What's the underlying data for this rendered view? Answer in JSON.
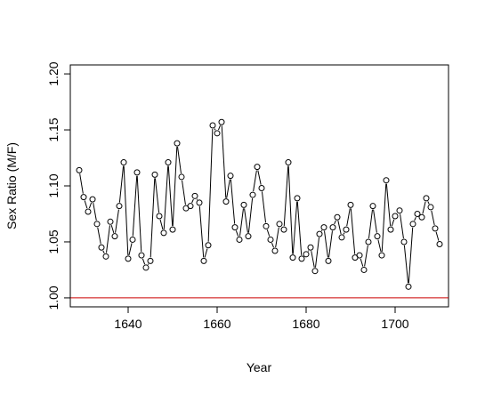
{
  "chart_data": {
    "type": "line",
    "xlabel": "Year",
    "ylabel": "Sex Ratio (M/F)",
    "xlim": [
      1627,
      1712
    ],
    "ylim": [
      0.992,
      1.208
    ],
    "xticks": [
      1640,
      1660,
      1680,
      1700
    ],
    "xtick_labels": [
      "1640",
      "1660",
      "1680",
      "1700"
    ],
    "yticks": [
      1.0,
      1.05,
      1.1,
      1.15,
      1.2
    ],
    "ytick_labels": [
      "1.00",
      "1.05",
      "1.10",
      "1.15",
      "1.20"
    ],
    "grid": false,
    "line_style": "both points and lines (type b)",
    "x": [
      1629,
      1630,
      1631,
      1632,
      1633,
      1634,
      1635,
      1636,
      1637,
      1638,
      1639,
      1640,
      1641,
      1642,
      1643,
      1644,
      1645,
      1646,
      1647,
      1648,
      1649,
      1650,
      1651,
      1652,
      1653,
      1654,
      1655,
      1656,
      1657,
      1658,
      1659,
      1660,
      1661,
      1662,
      1663,
      1664,
      1665,
      1666,
      1667,
      1668,
      1669,
      1670,
      1671,
      1672,
      1673,
      1674,
      1675,
      1676,
      1677,
      1678,
      1679,
      1680,
      1681,
      1682,
      1683,
      1684,
      1685,
      1686,
      1687,
      1688,
      1689,
      1690,
      1691,
      1692,
      1693,
      1694,
      1695,
      1696,
      1697,
      1698,
      1699,
      1700,
      1701,
      1702,
      1703,
      1704,
      1705,
      1706,
      1707,
      1708,
      1709,
      1710
    ],
    "values": [
      1.114,
      1.09,
      1.077,
      1.088,
      1.066,
      1.045,
      1.037,
      1.068,
      1.055,
      1.082,
      1.121,
      1.035,
      1.052,
      1.112,
      1.038,
      1.027,
      1.033,
      1.11,
      1.073,
      1.058,
      1.121,
      1.061,
      1.138,
      1.108,
      1.08,
      1.082,
      1.091,
      1.085,
      1.033,
      1.047,
      1.154,
      1.147,
      1.157,
      1.086,
      1.109,
      1.063,
      1.052,
      1.083,
      1.055,
      1.092,
      1.117,
      1.098,
      1.064,
      1.052,
      1.042,
      1.066,
      1.061,
      1.121,
      1.036,
      1.089,
      1.035,
      1.039,
      1.045,
      1.024,
      1.057,
      1.063,
      1.033,
      1.063,
      1.072,
      1.054,
      1.061,
      1.083,
      1.036,
      1.038,
      1.025,
      1.05,
      1.082,
      1.055,
      1.038,
      1.105,
      1.061,
      1.073,
      1.078,
      1.05,
      1.01,
      1.066,
      1.075,
      1.072,
      1.089,
      1.081,
      1.062,
      1.048
    ],
    "reference_line": {
      "y": 1.0,
      "color": "#cc0000"
    },
    "colors": {
      "points": "#000000",
      "line": "#000000",
      "axes": "#000000"
    }
  }
}
